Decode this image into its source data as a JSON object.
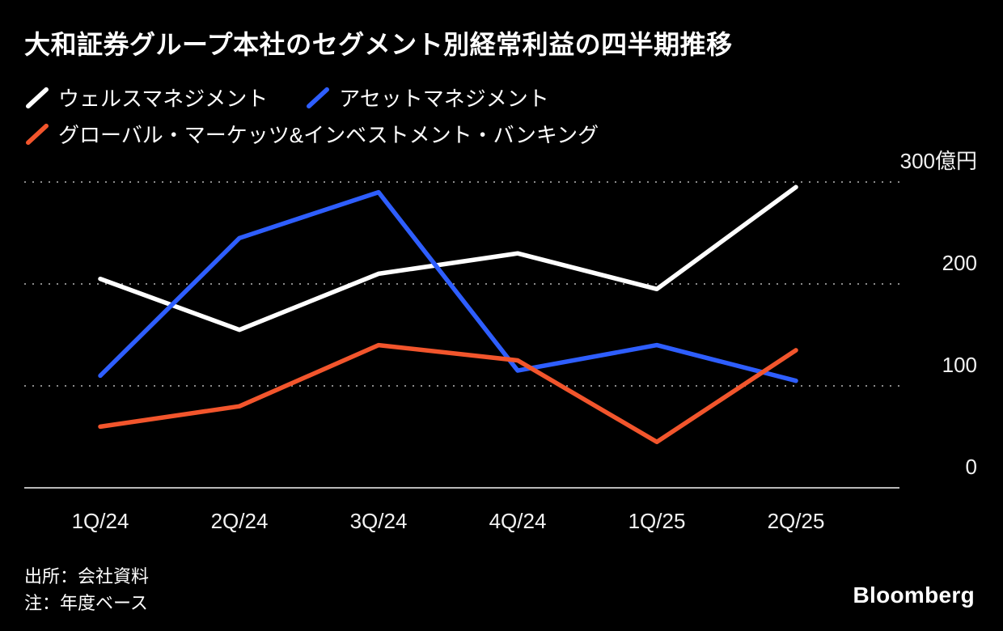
{
  "title": "大和証券グループ本社のセグメント別経常利益の四半期推移",
  "legend": [
    {
      "label": "ウェルスマネジメント",
      "color": "#ffffff"
    },
    {
      "label": "アセットマネジメント",
      "color": "#2e5eff"
    },
    {
      "label": "グローバル・マーケッツ&インベストメント・バンキング",
      "color": "#f2552c"
    }
  ],
  "chart_data": {
    "type": "line",
    "title": "大和証券グループ本社のセグメント別経常利益の四半期推移",
    "categories": [
      "1Q/24",
      "2Q/24",
      "3Q/24",
      "4Q/24",
      "1Q/25",
      "2Q/25"
    ],
    "series": [
      {
        "name": "ウェルスマネジメント",
        "color": "#ffffff",
        "values": [
          205,
          155,
          210,
          230,
          195,
          295
        ]
      },
      {
        "name": "アセットマネジメント",
        "color": "#2e5eff",
        "values": [
          110,
          245,
          290,
          115,
          140,
          105
        ]
      },
      {
        "name": "グローバル・マーケッツ&インベストメント・バンキング",
        "color": "#f2552c",
        "values": [
          60,
          80,
          140,
          125,
          45,
          135
        ]
      }
    ],
    "ylabel": "億円",
    "ylim": [
      0,
      300
    ],
    "yticks": [
      0,
      100,
      200,
      300
    ],
    "ytick_labels": [
      "0",
      "100",
      "200",
      "300億円"
    ],
    "grid": "horizontal-dotted",
    "legend_position": "top"
  },
  "footer": {
    "source": "出所：会社資料",
    "note": "注：年度ベース",
    "brand": "Bloomberg"
  }
}
